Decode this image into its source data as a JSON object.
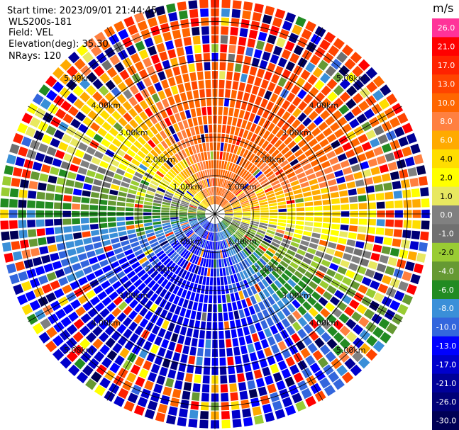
{
  "header": {
    "start_time": "Start time: 2023/09/01 21:44:45",
    "instrument": "WLS200s-181",
    "field": "Field: VEL",
    "elevation": "Elevation(deg): 35.30",
    "nrays": "NRays: 120"
  },
  "chart_data": {
    "type": "heatmap",
    "projection": "polar PPI",
    "n_rays": 120,
    "n_gates": 23,
    "range_rings_km": [
      1.0,
      2.0,
      3.0,
      4.0,
      5.0
    ],
    "range_labels": [
      "1.00km",
      "2.00km",
      "3.00km",
      "4.00km",
      "5.00km"
    ],
    "max_range_km": 5.6,
    "spoke_azimuths_deg": [
      0,
      30,
      60,
      90,
      120,
      150,
      180,
      210,
      240,
      270,
      300,
      330
    ],
    "colorbar": {
      "unit": "m/s",
      "ticks": [
        "26.0",
        "21.0",
        "17.0",
        "13.0",
        "10.0",
        "8.0",
        "6.0",
        "4.0",
        "2.0",
        "1.0",
        "0.0",
        "-1.0",
        "-2.0",
        "-4.0",
        "-6.0",
        "-8.0",
        "-10.0",
        "-13.0",
        "-17.0",
        "-21.0",
        "-26.0",
        "-30.0"
      ],
      "colors": [
        "#ff3399",
        "#ff0000",
        "#ff2200",
        "#ff4400",
        "#ff6600",
        "#ff8040",
        "#ffaa00",
        "#ffdd00",
        "#ffff00",
        "#e8e860",
        "#808080",
        "#707070",
        "#99cc33",
        "#669933",
        "#228b22",
        "#3a8fd8",
        "#3366dd",
        "#0000ff",
        "#0000cc",
        "#000099",
        "#000077",
        "#000055"
      ]
    },
    "notes": "Radial velocity field: positive (red/orange) toward north-east sector, negative (blue) toward south sector, near-zero (grey) along west-east axis; far gates noisy."
  }
}
